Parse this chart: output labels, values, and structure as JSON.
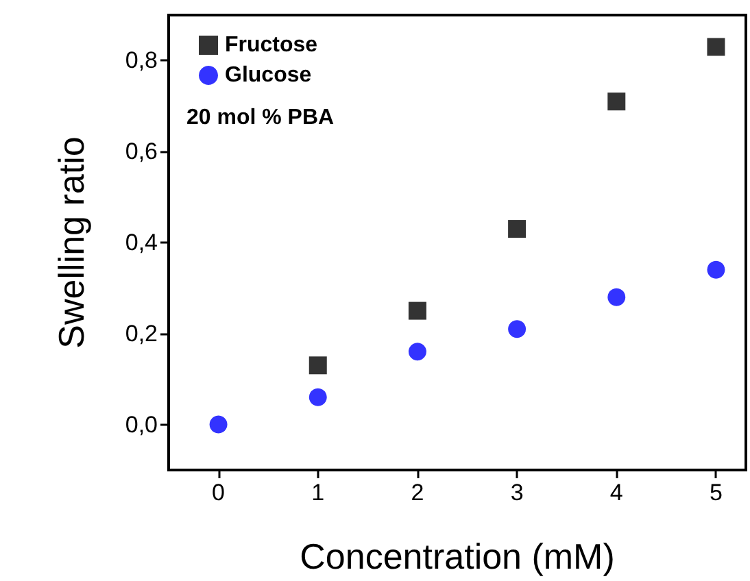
{
  "chart_data": {
    "type": "scatter",
    "xlabel": "Concentration (mM)",
    "ylabel": "Swelling ratio",
    "annotations": [
      "20 mol % PBA"
    ],
    "x": [
      0,
      1,
      2,
      3,
      4,
      5
    ],
    "series": [
      {
        "name": "Fructose",
        "color": "#000000",
        "marker": "square",
        "values": [
          null,
          0.13,
          0.25,
          0.43,
          0.71,
          0.83
        ]
      },
      {
        "name": "Glucose",
        "color": "#0000ff",
        "marker": "circle",
        "values": [
          0,
          0.06,
          0.16,
          0.21,
          0.28,
          0.34
        ]
      }
    ],
    "xlim": [
      -0.5,
      5.3
    ],
    "xticks": [
      0,
      1,
      2,
      3,
      4,
      5
    ],
    "ylim": [
      -0.1,
      0.9
    ],
    "yticks": [
      {
        "value": 0,
        "label": "0,0"
      },
      {
        "value": 0.2,
        "label": "0,2"
      },
      {
        "value": 0.4,
        "label": "0,4"
      },
      {
        "value": 0.6,
        "label": "0,6"
      },
      {
        "value": 0.8,
        "label": "0,8"
      }
    ],
    "grid": false,
    "legend": "top left"
  }
}
